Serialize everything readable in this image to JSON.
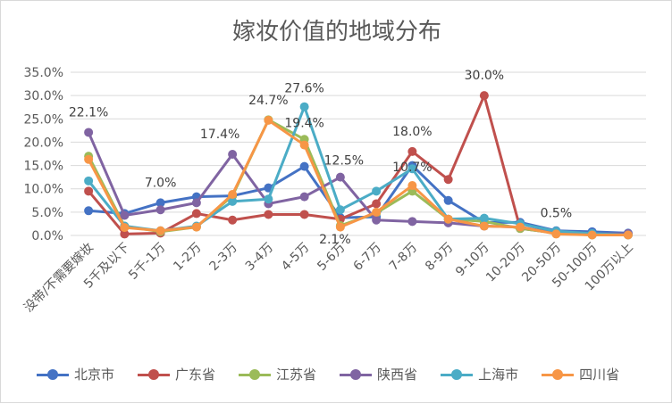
{
  "chart_data": {
    "type": "line",
    "title": "嫁妆价值的地域分布",
    "xlabel": "",
    "ylabel": "",
    "ylim": [
      0,
      0.35
    ],
    "y_ticks": [
      "0.0%",
      "5.0%",
      "10.0%",
      "15.0%",
      "20.0%",
      "25.0%",
      "30.0%",
      "35.0%"
    ],
    "grid": true,
    "legend_position": "bottom",
    "categories": [
      "没带/不需要嫁妆",
      "5千及以下",
      "5千-1万",
      "1-2万",
      "2-3万",
      "3-4万",
      "4-5万",
      "5-6万",
      "6-7万",
      "7-8万",
      "8-9万",
      "9-10万",
      "10-20万",
      "20-50万",
      "50-100万",
      "100万以上"
    ],
    "series": [
      {
        "name": "北京市",
        "color": "#4472C4",
        "values": [
          0.053,
          0.047,
          0.07,
          0.083,
          0.085,
          0.102,
          0.148,
          0.038,
          0.04,
          0.15,
          0.075,
          0.028,
          0.028,
          0.01,
          0.008,
          0.005
        ]
      },
      {
        "name": "广东省",
        "color": "#C0504D",
        "values": [
          0.095,
          0.003,
          0.005,
          0.047,
          0.033,
          0.045,
          0.045,
          0.035,
          0.068,
          0.18,
          0.12,
          0.3,
          0.015,
          0.005,
          0.002,
          0.002
        ]
      },
      {
        "name": "江苏省",
        "color": "#9BBB59",
        "values": [
          0.17,
          0.02,
          0.008,
          0.018,
          0.085,
          0.248,
          0.206,
          0.021,
          0.048,
          0.095,
          0.035,
          0.03,
          0.015,
          0.005,
          0.001,
          0.001
        ]
      },
      {
        "name": "陕西省",
        "color": "#8064A2",
        "values": [
          0.221,
          0.043,
          0.055,
          0.07,
          0.174,
          0.068,
          0.083,
          0.125,
          0.033,
          0.03,
          0.027,
          0.02,
          0.018,
          0.005,
          0.003,
          0.004
        ]
      },
      {
        "name": "上海市",
        "color": "#4BACC6",
        "values": [
          0.117,
          0.02,
          0.01,
          0.02,
          0.073,
          0.078,
          0.276,
          0.055,
          0.095,
          0.143,
          0.035,
          0.037,
          0.025,
          0.009,
          0.004,
          0.001
        ]
      },
      {
        "name": "四川省",
        "color": "#F79646",
        "values": [
          0.163,
          0.017,
          0.01,
          0.018,
          0.088,
          0.247,
          0.194,
          0.018,
          0.05,
          0.107,
          0.035,
          0.02,
          0.018,
          0.003,
          0.001,
          0.001
        ]
      }
    ],
    "annotations": [
      {
        "text": "22.1%",
        "series": "陕西省",
        "category": "没带/不需要嫁妆"
      },
      {
        "text": "7.0%",
        "series": "北京市",
        "category": "5千-1万"
      },
      {
        "text": "17.4%",
        "series": "陕西省",
        "category": "2-3万"
      },
      {
        "text": "24.7%",
        "series": "四川省",
        "category": "3-4万"
      },
      {
        "text": "27.6%",
        "series": "上海市",
        "category": "4-5万"
      },
      {
        "text": "19.4%",
        "series": "四川省",
        "category": "4-5万"
      },
      {
        "text": "2.1%",
        "series": "江苏省",
        "category": "5-6万"
      },
      {
        "text": "12.5%",
        "series": "陕西省",
        "category": "5-6万"
      },
      {
        "text": "18.0%",
        "series": "广东省",
        "category": "7-8万"
      },
      {
        "text": "10.7%",
        "series": "四川省",
        "category": "7-8万"
      },
      {
        "text": "30.0%",
        "series": "广东省",
        "category": "9-10万"
      },
      {
        "text": "0.5%",
        "series": "广东省",
        "category": "20-50万"
      }
    ]
  }
}
